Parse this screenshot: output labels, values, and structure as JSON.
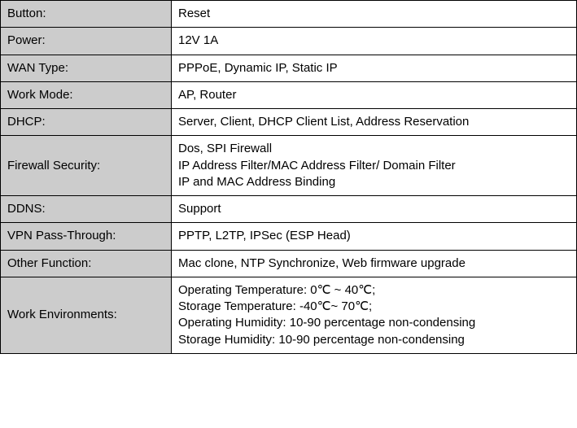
{
  "table": {
    "label_bg": "#cccccc",
    "value_bg": "#ffffff",
    "border_color": "#000000",
    "font_size": 15,
    "label_col_width": 210,
    "rows": [
      {
        "label": "Button:",
        "value": "Reset"
      },
      {
        "label": "Power:",
        "value": "12V 1A"
      },
      {
        "label": "WAN Type:",
        "value": "PPPoE, Dynamic IP, Static IP"
      },
      {
        "label": "Work Mode:",
        "value": "AP, Router"
      },
      {
        "label": "DHCP:",
        "value": "Server, Client, DHCP Client List, Address Reservation"
      },
      {
        "label": "Firewall Security:",
        "value": "Dos, SPI Firewall\nIP Address Filter/MAC Address Filter/ Domain Filter\nIP and MAC Address Binding"
      },
      {
        "label": "DDNS:",
        "value": "Support"
      },
      {
        "label": "VPN Pass-Through:",
        "value": "PPTP, L2TP, IPSec (ESP Head)"
      },
      {
        "label": "Other Function:",
        "value": "Mac clone, NTP Synchronize, Web firmware upgrade"
      },
      {
        "label": "Work Environments:",
        "value": "Operating Temperature: 0℃ ~ 40℃;\nStorage Temperature: -40℃~ 70℃;\nOperating Humidity: 10-90 percentage non-condensing\nStorage Humidity: 10-90 percentage non-condensing"
      }
    ]
  }
}
